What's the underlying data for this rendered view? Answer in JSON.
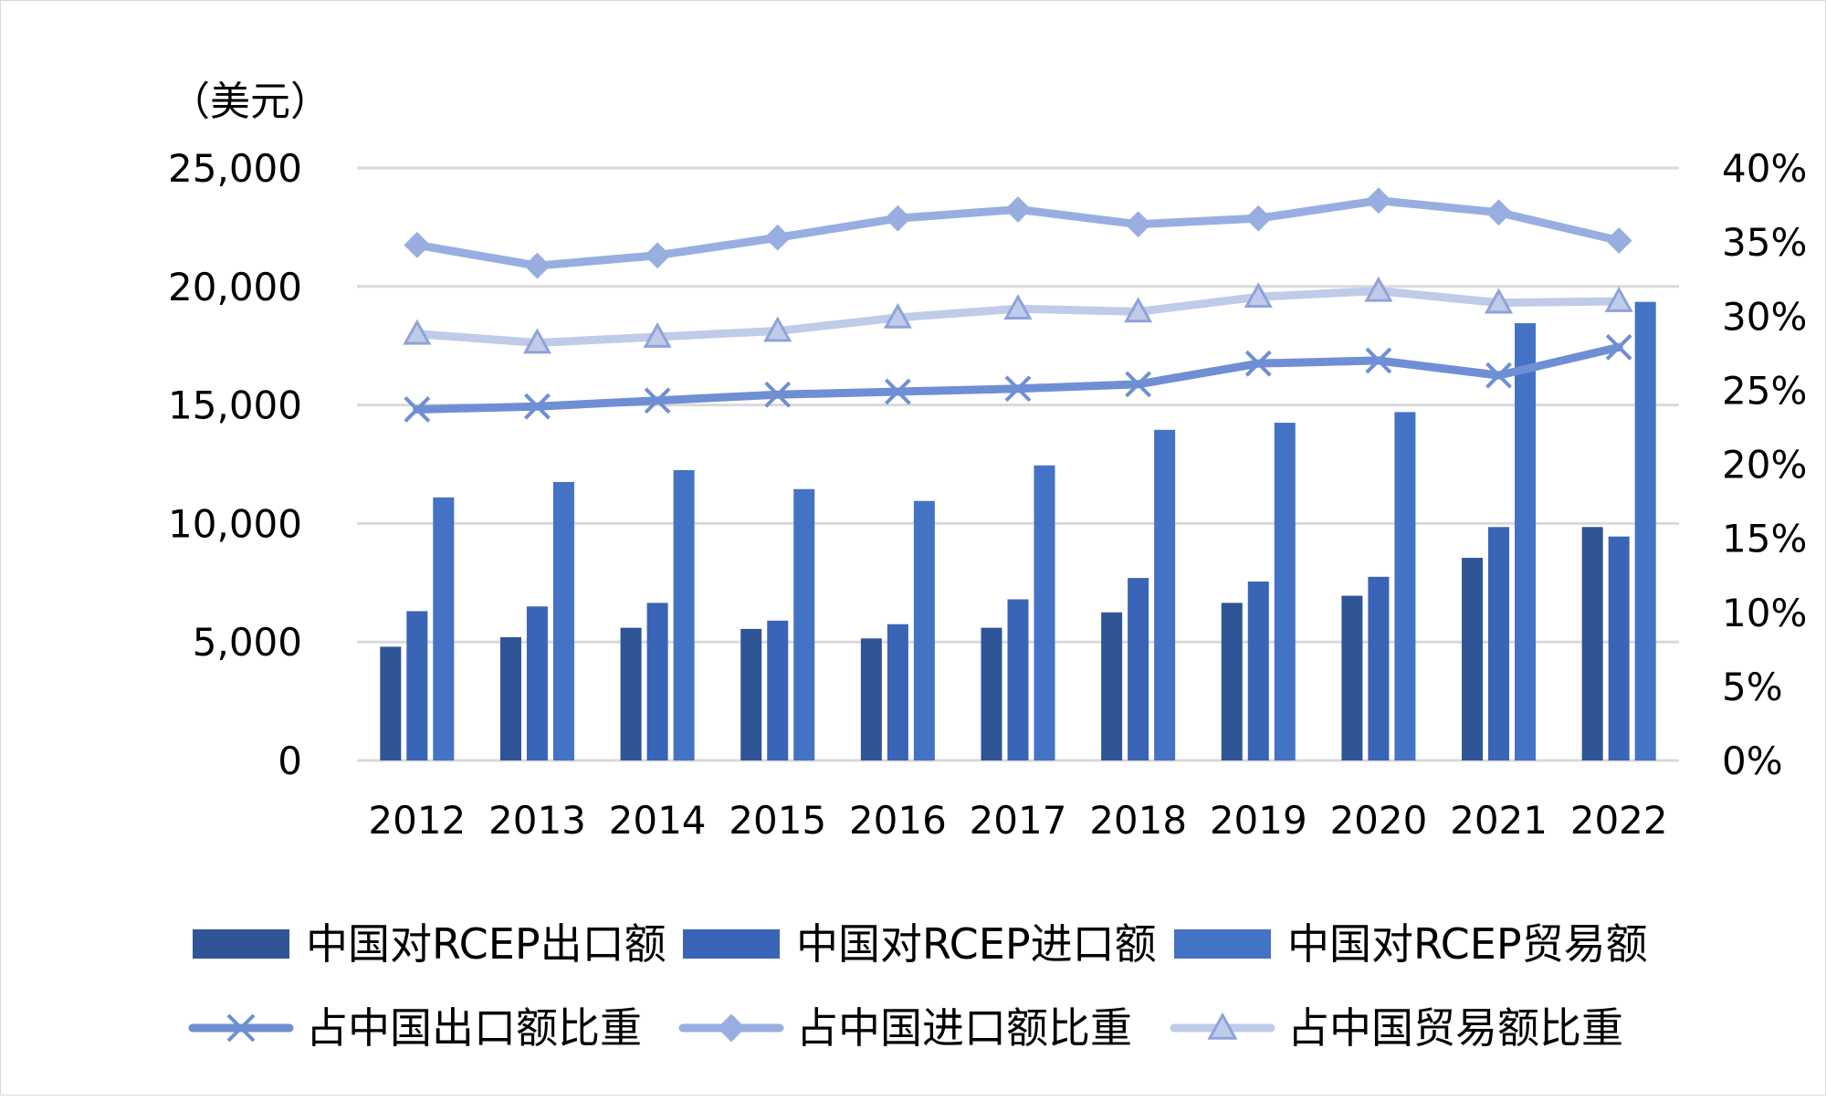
{
  "chart_data": {
    "type": "bar",
    "y_unit_label": "（美元）",
    "categories": [
      "2012",
      "2013",
      "2014",
      "2015",
      "2016",
      "2017",
      "2018",
      "2019",
      "2020",
      "2021",
      "2022"
    ],
    "series": [
      {
        "name": "中国对RCEP出口额",
        "type": "bar",
        "axis": "left",
        "color": "#2f5597",
        "values": [
          4800,
          5200,
          5600,
          5550,
          5150,
          5600,
          6250,
          6650,
          6950,
          8550,
          9850
        ]
      },
      {
        "name": "中国对RCEP进口额",
        "type": "bar",
        "axis": "left",
        "color": "#3a64b5",
        "values": [
          6300,
          6500,
          6650,
          5900,
          5750,
          6800,
          7700,
          7550,
          7750,
          9850,
          9450
        ]
      },
      {
        "name": "中国对RCEP贸易额",
        "type": "bar",
        "axis": "left",
        "color": "#4472c4",
        "values": [
          11100,
          11750,
          12250,
          11450,
          10950,
          12450,
          13950,
          14250,
          14700,
          18450,
          19350
        ]
      },
      {
        "name": "占中国出口额比重",
        "type": "line",
        "axis": "right",
        "marker": "x",
        "color": "#6f8fd4",
        "values": [
          23.7,
          23.9,
          24.3,
          24.7,
          24.9,
          25.1,
          25.4,
          26.8,
          27.0,
          26.0,
          27.9
        ]
      },
      {
        "name": "占中国进口额比重",
        "type": "line",
        "axis": "right",
        "marker": "diamond",
        "color": "#98aee0",
        "values": [
          34.8,
          33.4,
          34.1,
          35.3,
          36.6,
          37.2,
          36.2,
          36.6,
          37.8,
          37.0,
          35.1
        ]
      },
      {
        "name": "占中国贸易额比重",
        "type": "line",
        "axis": "right",
        "marker": "triangle",
        "color": "#c0cbea",
        "values": [
          28.8,
          28.2,
          28.6,
          29.0,
          29.9,
          30.5,
          30.3,
          31.3,
          31.7,
          30.9,
          31.0
        ]
      }
    ],
    "y_left": {
      "min": 0,
      "max": 25000,
      "ticks": [
        "0",
        "5,000",
        "10,000",
        "15,000",
        "20,000",
        "25,000"
      ],
      "tick_values": [
        0,
        5000,
        10000,
        15000,
        20000,
        25000
      ]
    },
    "y_right": {
      "min": 0,
      "max": 40,
      "ticks": [
        "0%",
        "5%",
        "10%",
        "15%",
        "20%",
        "25%",
        "30%",
        "35%",
        "40%"
      ],
      "tick_values": [
        0,
        5,
        10,
        15,
        20,
        25,
        30,
        35,
        40
      ]
    },
    "grid": true,
    "legend_position": "bottom"
  }
}
